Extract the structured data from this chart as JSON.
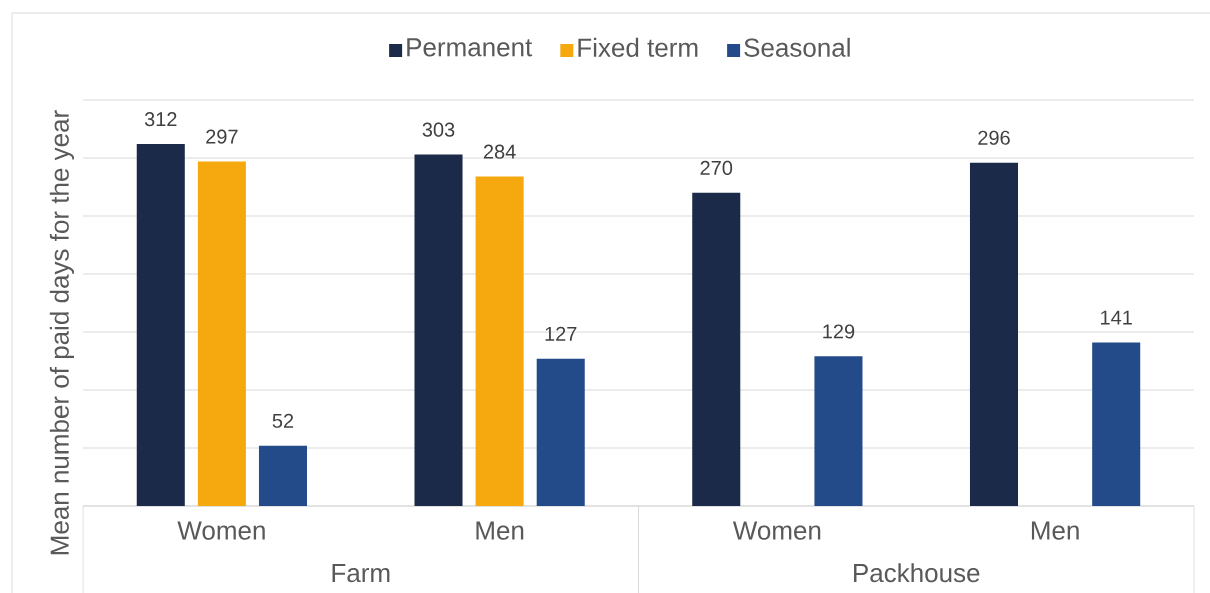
{
  "chart_data": {
    "type": "bar",
    "ylabel": "Mean number of paid days for the year",
    "categories": [
      "Women",
      "Men",
      "Women",
      "Men"
    ],
    "annotations": [
      "Farm",
      "Packhouse"
    ],
    "series": [
      {
        "name": "Permanent",
        "color": "#1b2a48",
        "values": [
          312,
          303,
          270,
          296
        ]
      },
      {
        "name": "Fixed term",
        "color": "#f5a90e",
        "values": [
          297,
          284,
          null,
          null
        ]
      },
      {
        "name": "Seasonal",
        "color": "#234b89",
        "values": [
          52,
          127,
          129,
          141
        ]
      }
    ],
    "ylim": [
      0,
      350
    ],
    "yticks": [
      {
        "value": 0,
        "label": null
      },
      {
        "value": 50,
        "label": null
      },
      {
        "value": 100,
        "label": null
      },
      {
        "value": 150,
        "label": null
      },
      {
        "value": 200,
        "label": null
      },
      {
        "value": 250,
        "label": null
      },
      {
        "value": 300,
        "label": null
      },
      {
        "value": 350,
        "label": null
      }
    ],
    "grid": "y",
    "legend": "top",
    "data_labels": true,
    "tick_labels": "x"
  }
}
